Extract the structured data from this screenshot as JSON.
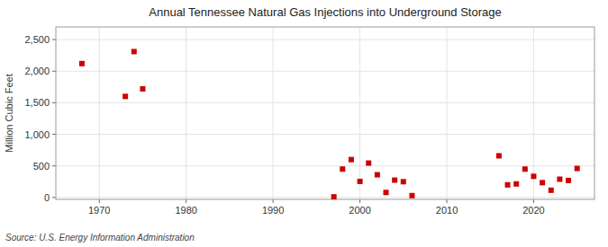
{
  "chart_data": {
    "type": "scatter",
    "title": "Annual Tennessee Natural Gas Injections into Underground Storage",
    "ylabel": "Million Cubic Feet",
    "annotation": "Source: U.S. Energy Information Administration",
    "x": [
      1968,
      1973,
      1974,
      1975,
      1997,
      1998,
      1999,
      2000,
      2001,
      2002,
      2003,
      2004,
      2005,
      2006,
      2016,
      2017,
      2018,
      2019,
      2020,
      2021,
      2022,
      2023,
      2024,
      2025
    ],
    "values": [
      2120,
      1600,
      2310,
      1720,
      10,
      450,
      600,
      255,
      545,
      360,
      80,
      275,
      250,
      30,
      660,
      200,
      215,
      450,
      335,
      235,
      115,
      290,
      270,
      460
    ],
    "color": "#cc0000",
    "marker": "square",
    "xlim": [
      1965,
      2027
    ],
    "ylim": [
      -30,
      2700
    ],
    "xticks": [
      1970,
      1980,
      1990,
      2000,
      2010,
      2020
    ],
    "yticks": [
      0,
      500,
      {
        "value": 1000,
        "label": "1,000"
      },
      {
        "value": 1500,
        "label": "1,500"
      },
      {
        "value": 2000,
        "label": "2,000"
      },
      {
        "value": 2500,
        "label": "2,500"
      }
    ],
    "grid": true
  }
}
